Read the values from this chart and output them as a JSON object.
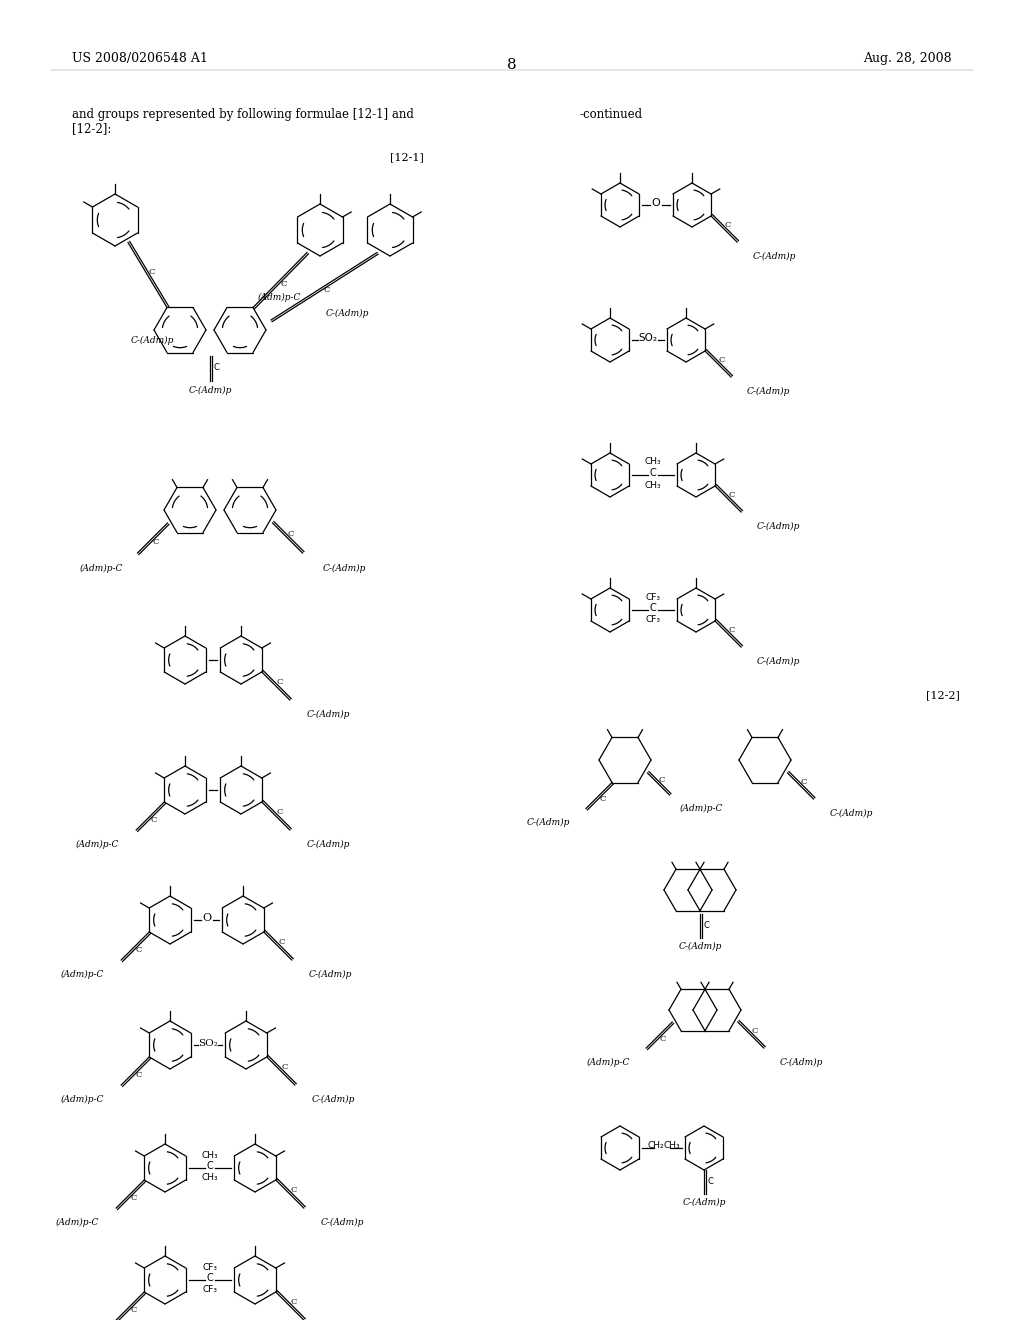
{
  "page_number": "8",
  "patent_number": "US 2008/0206548 A1",
  "patent_date": "Aug. 28, 2008",
  "intro_text_line1": "and groups represented by following formulae [12-1] and",
  "intro_text_line2": "[12-2]:",
  "continued_label": "-continued",
  "label_12_1": "[12-1]",
  "label_12_2": "[12-2]",
  "background_color": "#ffffff",
  "text_color": "#000000"
}
